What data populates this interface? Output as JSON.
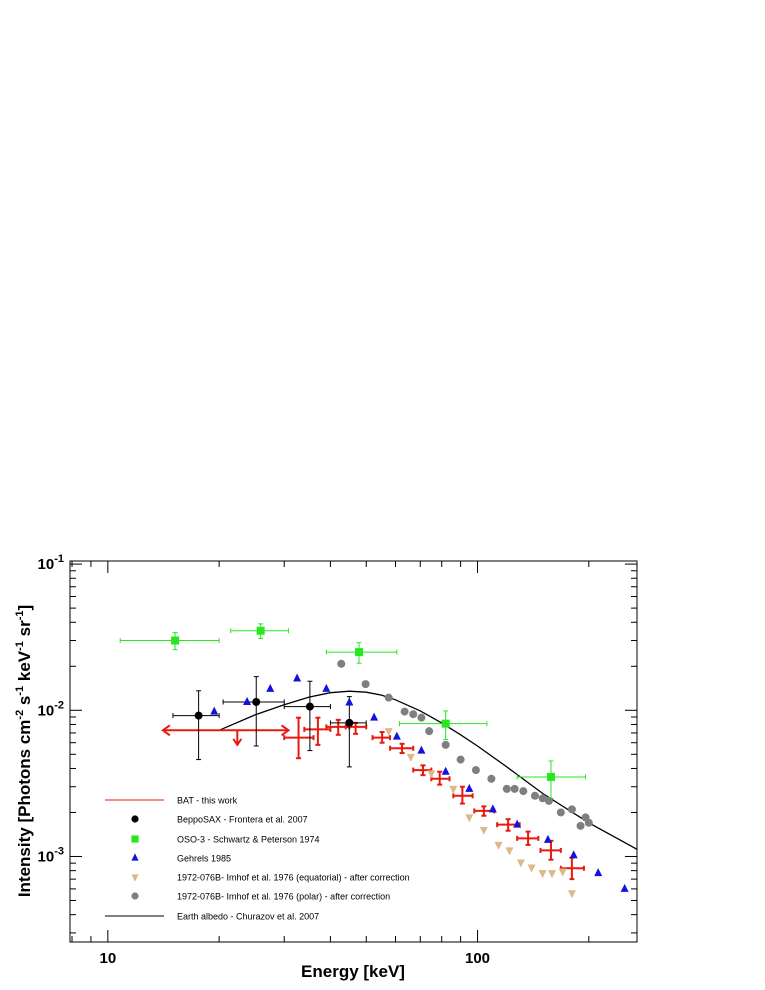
{
  "chart_data": {
    "type": "scatter",
    "title": "",
    "xlabel": "Energy [keV]",
    "ylabel": "Intensity [Photons cm^-2 s^-1 keV^-1 sr^-1]",
    "xscale": "log",
    "yscale": "log",
    "xlim": [
      7.9,
      270
    ],
    "ylim": [
      0.00026,
      0.105
    ],
    "grid": false,
    "legend_position": "bottom-left",
    "x_tick_labels": [
      {
        "value": 10,
        "text": "10"
      },
      {
        "value": 100,
        "text": "100"
      }
    ],
    "y_tick_labels": [
      {
        "value": 0.1,
        "base": "10",
        "exp": "-1"
      },
      {
        "value": 0.01,
        "base": "10",
        "exp": "-2"
      },
      {
        "value": 0.001,
        "base": "10",
        "exp": "-3"
      }
    ],
    "series": [
      {
        "name": "BAT - this work",
        "marker": "cross",
        "color": "#e8190f",
        "points": [
          {
            "x": 32.8,
            "y": 0.0065,
            "xerr": [
              30,
              36
            ],
            "yerr": [
              0.0047,
              0.0089
            ]
          },
          {
            "x": 37,
            "y": 0.0074,
            "xerr": [
              34,
              40
            ],
            "yerr": [
              0.0058,
              0.0089
            ]
          },
          {
            "x": 42,
            "y": 0.0077,
            "xerr": [
              39,
              45
            ],
            "yerr": [
              0.0068,
              0.0086
            ]
          },
          {
            "x": 46.8,
            "y": 0.0077,
            "xerr": [
              44,
              50
            ],
            "yerr": [
              0.0069,
              0.0082
            ]
          },
          {
            "x": 55.2,
            "y": 0.0065,
            "xerr": [
              52,
              58
            ],
            "yerr": [
              0.006,
              0.0071
            ]
          },
          {
            "x": 62.5,
            "y": 0.0055,
            "xerr": [
              58,
              67
            ],
            "yerr": [
              0.0051,
              0.0059
            ]
          },
          {
            "x": 71.2,
            "y": 0.0039,
            "xerr": [
              67,
              75
            ],
            "yerr": [
              0.0036,
              0.0042
            ]
          },
          {
            "x": 79,
            "y": 0.0034,
            "xerr": [
              75,
              84
            ],
            "yerr": [
              0.0031,
              0.0038
            ]
          },
          {
            "x": 91,
            "y": 0.0026,
            "xerr": [
              86,
              97
            ],
            "yerr": [
              0.0023,
              0.003
            ]
          },
          {
            "x": 104,
            "y": 0.00205,
            "xerr": [
              98,
              111
            ],
            "yerr": [
              0.0019,
              0.0022
            ]
          },
          {
            "x": 121,
            "y": 0.00165,
            "xerr": [
              113,
              130
            ],
            "yerr": [
              0.0015,
              0.0018
            ]
          },
          {
            "x": 137,
            "y": 0.00133,
            "xerr": [
              128,
              146
            ],
            "yerr": [
              0.0012,
              0.00148
            ]
          },
          {
            "x": 158,
            "y": 0.0011,
            "xerr": [
              148,
              168
            ],
            "yerr": [
              0.00095,
              0.00128
            ]
          },
          {
            "x": 180,
            "y": 0.00083,
            "xerr": [
              168,
              194
            ],
            "yerr": [
              0.0007,
              0.00098
            ]
          }
        ],
        "upper_limits": [
          {
            "x": 22.4,
            "y": 0.0073,
            "xerr": [
              14,
              31
            ],
            "arrow_to": 0.0058
          }
        ]
      },
      {
        "name": "BeppoSAX - Frontera et al. 2007",
        "marker": "circle",
        "color": "#000000",
        "points": [
          {
            "x": 17.6,
            "y": 0.0092,
            "xerr": [
              15,
              20
            ],
            "yerr": [
              0.0046,
              0.0136
            ]
          },
          {
            "x": 25.2,
            "y": 0.0114,
            "xerr": [
              20.5,
              30
            ],
            "yerr": [
              0.0057,
              0.017
            ]
          },
          {
            "x": 35.2,
            "y": 0.0106,
            "xerr": [
              30,
              40
            ],
            "yerr": [
              0.0053,
              0.0158
            ]
          },
          {
            "x": 45,
            "y": 0.0082,
            "xerr": [
              40,
              50
            ],
            "yerr": [
              0.0041,
              0.0124
            ]
          }
        ]
      },
      {
        "name": "OSO-3 - Schwartz & Peterson 1974",
        "marker": "square",
        "color": "#27e81e",
        "points": [
          {
            "x": 15.2,
            "y": 0.03,
            "xerr": [
              10.8,
              20
            ],
            "yerr": [
              0.026,
              0.034
            ]
          },
          {
            "x": 25.9,
            "y": 0.035,
            "xerr": [
              21.5,
              30.8
            ],
            "yerr": [
              0.031,
              0.039
            ]
          },
          {
            "x": 47.8,
            "y": 0.025,
            "xerr": [
              39,
              60.5
            ],
            "yerr": [
              0.021,
              0.029
            ]
          },
          {
            "x": 82,
            "y": 0.0081,
            "xerr": [
              61.5,
              106
            ],
            "yerr": [
              0.0063,
              0.0099
            ]
          },
          {
            "x": 158,
            "y": 0.0035,
            "xerr": [
              128,
              196
            ],
            "yerr": [
              0.0025,
              0.0045
            ]
          }
        ]
      },
      {
        "name": "Gehrels 1985",
        "marker": "triangle-up",
        "color": "#1212e0",
        "points": [
          {
            "x": 19.4,
            "y": 0.0098
          },
          {
            "x": 23.8,
            "y": 0.0114
          },
          {
            "x": 27.5,
            "y": 0.014
          },
          {
            "x": 32.5,
            "y": 0.0165
          },
          {
            "x": 39,
            "y": 0.014
          },
          {
            "x": 45,
            "y": 0.0113
          },
          {
            "x": 52.5,
            "y": 0.0089
          },
          {
            "x": 60.5,
            "y": 0.0066
          },
          {
            "x": 70.5,
            "y": 0.0053
          },
          {
            "x": 82,
            "y": 0.0038
          },
          {
            "x": 95,
            "y": 0.0029
          },
          {
            "x": 110,
            "y": 0.0021
          },
          {
            "x": 128,
            "y": 0.00165
          },
          {
            "x": 155,
            "y": 0.0013
          },
          {
            "x": 182,
            "y": 0.00102
          },
          {
            "x": 212,
            "y": 0.00077
          },
          {
            "x": 250,
            "y": 0.0006
          }
        ]
      },
      {
        "name": "1972-076B- Imhof et al. 1976 (equatorial) - after correction",
        "marker": "triangle-down",
        "color": "#dcb88a",
        "points": [
          {
            "x": 57.5,
            "y": 0.0072
          },
          {
            "x": 66,
            "y": 0.0048
          },
          {
            "x": 75,
            "y": 0.0037
          },
          {
            "x": 86,
            "y": 0.0029
          },
          {
            "x": 95,
            "y": 0.00185
          },
          {
            "x": 104,
            "y": 0.00152
          },
          {
            "x": 114,
            "y": 0.0012
          },
          {
            "x": 122,
            "y": 0.0011
          },
          {
            "x": 131,
            "y": 0.00091
          },
          {
            "x": 140,
            "y": 0.00084
          },
          {
            "x": 150,
            "y": 0.00077
          },
          {
            "x": 159,
            "y": 0.00077
          },
          {
            "x": 170,
            "y": 0.00079
          },
          {
            "x": 180,
            "y": 0.00056
          }
        ]
      },
      {
        "name": "1972-076B- Imhof et al. 1976 (polar) - after correction",
        "marker": "circle",
        "color": "#7f7f7f",
        "points": [
          {
            "x": 42.8,
            "y": 0.0208
          },
          {
            "x": 49.8,
            "y": 0.0151
          },
          {
            "x": 57.5,
            "y": 0.0122
          },
          {
            "x": 63.5,
            "y": 0.0098
          },
          {
            "x": 67,
            "y": 0.0094
          },
          {
            "x": 70.5,
            "y": 0.0089
          },
          {
            "x": 74,
            "y": 0.0072
          },
          {
            "x": 82,
            "y": 0.0058
          },
          {
            "x": 90,
            "y": 0.0046
          },
          {
            "x": 99,
            "y": 0.0039
          },
          {
            "x": 109,
            "y": 0.0034
          },
          {
            "x": 120,
            "y": 0.0029
          },
          {
            "x": 126,
            "y": 0.0029
          },
          {
            "x": 133,
            "y": 0.0028
          },
          {
            "x": 143,
            "y": 0.0026
          },
          {
            "x": 150,
            "y": 0.0025
          },
          {
            "x": 156,
            "y": 0.0024
          },
          {
            "x": 168,
            "y": 0.002
          },
          {
            "x": 180,
            "y": 0.0021
          },
          {
            "x": 190,
            "y": 0.00162
          },
          {
            "x": 196,
            "y": 0.00185
          },
          {
            "x": 200,
            "y": 0.0017
          }
        ]
      },
      {
        "name": "Earth albedo - Churazov et al. 2007",
        "marker": "line",
        "color": "#000000",
        "points": [
          {
            "x": 20,
            "y": 0.0073
          },
          {
            "x": 25,
            "y": 0.0093
          },
          {
            "x": 30,
            "y": 0.0109
          },
          {
            "x": 35,
            "y": 0.0123
          },
          {
            "x": 40,
            "y": 0.0132
          },
          {
            "x": 45,
            "y": 0.0135
          },
          {
            "x": 50,
            "y": 0.0133
          },
          {
            "x": 55,
            "y": 0.0127
          },
          {
            "x": 60,
            "y": 0.0118
          },
          {
            "x": 70,
            "y": 0.0099
          },
          {
            "x": 80,
            "y": 0.0082
          },
          {
            "x": 90,
            "y": 0.0068
          },
          {
            "x": 100,
            "y": 0.0057
          },
          {
            "x": 120,
            "y": 0.0041
          },
          {
            "x": 150,
            "y": 0.0027
          },
          {
            "x": 200,
            "y": 0.0017
          },
          {
            "x": 270,
            "y": 0.00112
          }
        ]
      }
    ]
  }
}
